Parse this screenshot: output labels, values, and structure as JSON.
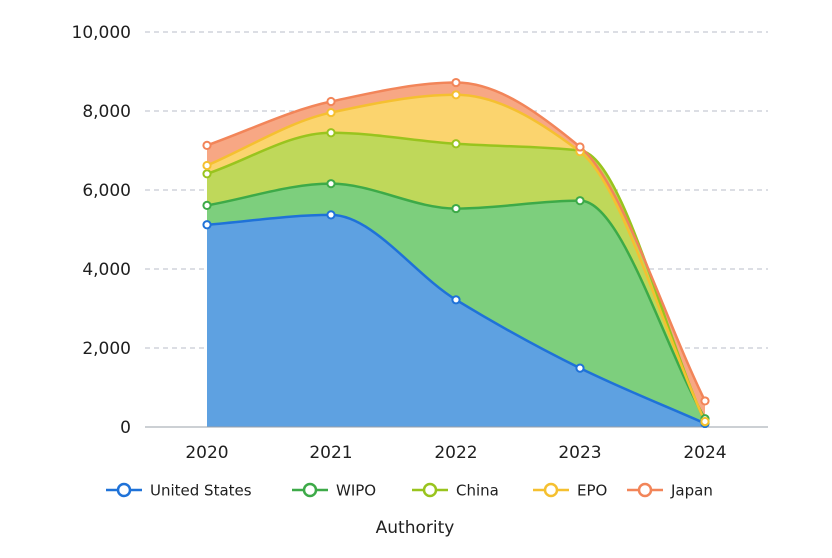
{
  "chart_data": {
    "type": "area",
    "stacked": true,
    "categories": [
      "2020",
      "2021",
      "2022",
      "2023",
      "2024"
    ],
    "series": [
      {
        "name": "United States",
        "values": [
          5120,
          5370,
          3220,
          1490,
          90
        ],
        "line_color": "#1f72d8",
        "fill_color": "#5ea1e1"
      },
      {
        "name": "WIPO",
        "values": [
          490,
          790,
          2310,
          4240,
          120
        ],
        "line_color": "#3daa48",
        "fill_color": "#7dcf7d"
      },
      {
        "name": "China",
        "values": [
          800,
          1290,
          1640,
          1270,
          -80
        ],
        "line_color": "#99c41e",
        "fill_color": "#bfd85a"
      },
      {
        "name": "EPO",
        "values": [
          210,
          510,
          1240,
          -30,
          10
        ],
        "line_color": "#f5c030",
        "fill_color": "#fbd46e"
      },
      {
        "name": "Japan",
        "values": [
          510,
          280,
          310,
          120,
          520
        ],
        "line_color": "#f28559",
        "fill_color": "#f7a784"
      }
    ],
    "ylim": [
      0,
      10000
    ],
    "yticks": [
      "0",
      "2,000",
      "4,000",
      "6,000",
      "8,000",
      "10,000"
    ],
    "xlabel": "Authority",
    "ylabel": "",
    "grid": true,
    "legend_position": "bottom"
  }
}
